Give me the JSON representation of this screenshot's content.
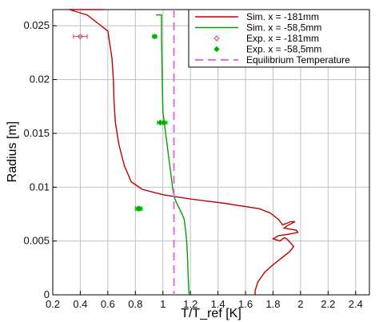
{
  "chart_data": {
    "type": "line",
    "xlabel": "T/T_ref [K]",
    "ylabel": "Radius [m]",
    "xlim": [
      0.2,
      2.5
    ],
    "ylim": [
      0,
      0.0265
    ],
    "xticks": [
      0.2,
      0.4,
      0.6,
      0.8,
      1,
      1.2,
      1.4,
      1.6,
      1.8,
      2,
      2.2,
      2.4
    ],
    "xtick_labels": [
      "0.2",
      "0.4",
      "0.6",
      "0.8",
      "1",
      "1.2",
      "1.4",
      "1.6",
      "1.8",
      "2",
      "2.2",
      "2.4"
    ],
    "yticks": [
      0,
      0.005,
      0.01,
      0.015,
      0.02,
      0.025
    ],
    "ytick_labels": [
      "0",
      "0.005",
      "0.01",
      "0.015",
      "0.02",
      "0.025"
    ],
    "grid": true,
    "legend_position": "top-right",
    "series": [
      {
        "name": "Sim. x = -181mm",
        "kind": "line",
        "color": "#c00000",
        "points": [
          [
            0.32,
            0.0265
          ],
          [
            0.57,
            0.0265
          ],
          [
            0.32,
            0.0265
          ],
          [
            0.45,
            0.026
          ],
          [
            0.6,
            0.0245
          ],
          [
            0.63,
            0.022
          ],
          [
            0.64,
            0.02
          ],
          [
            0.645,
            0.018
          ],
          [
            0.655,
            0.016
          ],
          [
            0.68,
            0.014
          ],
          [
            0.72,
            0.012
          ],
          [
            0.77,
            0.0105
          ],
          [
            0.85,
            0.0098
          ],
          [
            1.0,
            0.0093
          ],
          [
            1.2,
            0.0089
          ],
          [
            1.45,
            0.0085
          ],
          [
            1.7,
            0.008
          ],
          [
            1.78,
            0.0076
          ],
          [
            1.84,
            0.007
          ],
          [
            1.87,
            0.0065
          ],
          [
            1.93,
            0.0068
          ],
          [
            1.96,
            0.0068
          ],
          [
            1.9,
            0.0064
          ],
          [
            1.88,
            0.0062
          ],
          [
            1.97,
            0.006
          ],
          [
            1.98,
            0.0058
          ],
          [
            1.9,
            0.0056
          ],
          [
            1.84,
            0.0055
          ],
          [
            1.8,
            0.0052
          ],
          [
            1.85,
            0.005
          ],
          [
            1.88,
            0.0053
          ],
          [
            1.9,
            0.0052
          ],
          [
            1.95,
            0.0045
          ],
          [
            1.92,
            0.004
          ],
          [
            1.86,
            0.0034
          ],
          [
            1.8,
            0.0028
          ],
          [
            1.74,
            0.0021
          ],
          [
            1.69,
            0.0012
          ],
          [
            1.67,
            0.0004
          ],
          [
            1.67,
            0
          ]
        ]
      },
      {
        "name": "Sim. x = -58,5mm",
        "kind": "line",
        "color": "#00a000",
        "points": [
          [
            0.95,
            0.026
          ],
          [
            0.99,
            0.026
          ],
          [
            0.99,
            0.024
          ],
          [
            0.995,
            0.02
          ],
          [
            1.0,
            0.017
          ],
          [
            1.02,
            0.015
          ],
          [
            1.04,
            0.013
          ],
          [
            1.06,
            0.011
          ],
          [
            1.075,
            0.0095
          ],
          [
            1.085,
            0.009
          ],
          [
            1.1,
            0.0085
          ],
          [
            1.12,
            0.008
          ],
          [
            1.14,
            0.0075
          ],
          [
            1.155,
            0.007
          ],
          [
            1.165,
            0.006
          ],
          [
            1.172,
            0.005
          ],
          [
            1.177,
            0.004
          ],
          [
            1.18,
            0.003
          ],
          [
            1.183,
            0.002
          ],
          [
            1.186,
            0.001
          ],
          [
            1.19,
            0
          ]
        ]
      },
      {
        "name": "Exp. x = -181mm",
        "kind": "marker",
        "marker": "diamond-open",
        "color": "#d04050",
        "points": [
          [
            0.4,
            0.024
          ]
        ],
        "xerr": [
          0.05
        ]
      },
      {
        "name": "Exp. x = -58,5mm",
        "kind": "marker",
        "marker": "diamond-filled",
        "color": "#00b000",
        "points": [
          [
            0.94,
            0.024
          ],
          [
            0.98,
            0.016
          ],
          [
            1.01,
            0.016
          ],
          [
            0.82,
            0.008
          ],
          [
            0.83,
            0.008
          ]
        ],
        "xerr": [
          0.015,
          0.02,
          0.02,
          0.02,
          0.02
        ]
      },
      {
        "name": "Equilibrium Temperature",
        "kind": "vline",
        "color": "#e070e0",
        "x": 1.08
      }
    ]
  }
}
